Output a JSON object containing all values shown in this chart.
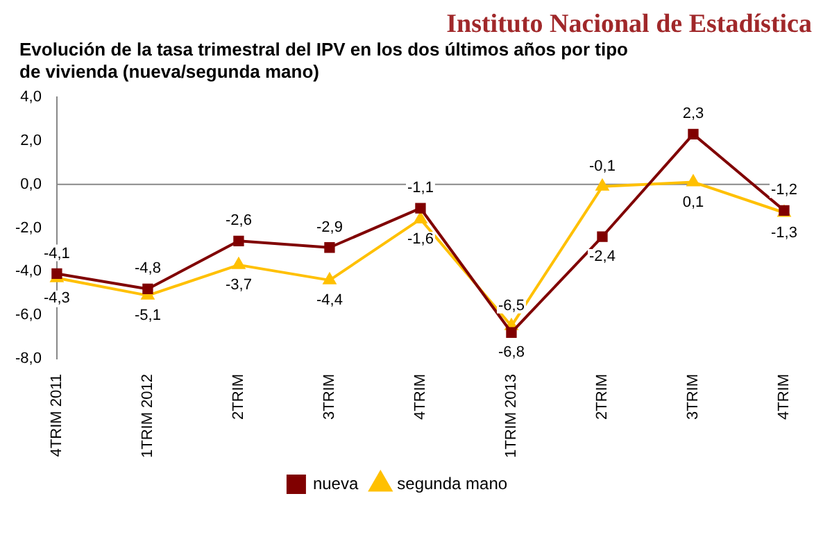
{
  "chart_data": {
    "type": "line",
    "title": "Evolución de la tasa trimestral del IPV en los dos últimos años por tipo de vivienda (nueva/segunda mano)",
    "annotations": [
      "Instituto Nacional de Estadística"
    ],
    "categories": [
      "4TRIM 2011",
      "1TRIM 2012",
      "2TRIM",
      "3TRIM",
      "4TRIM",
      "1TRIM 2013",
      "2TRIM",
      "3TRIM",
      "4TRIM"
    ],
    "series": [
      {
        "name": "nueva",
        "color": "#800000",
        "marker": "square",
        "values": [
          -4.1,
          -4.8,
          -2.6,
          -2.9,
          -1.1,
          -6.8,
          -2.4,
          2.3,
          -1.2
        ],
        "value_labels": [
          "-4,1",
          "-4,8",
          "-2,6",
          "-2,9",
          "-1,1",
          "-6,8",
          "-2,4",
          "2,3",
          "-1,2"
        ]
      },
      {
        "name": "segunda mano",
        "color": "#ffc000",
        "marker": "triangle",
        "values": [
          -4.3,
          -5.1,
          -3.7,
          -4.4,
          -1.6,
          -6.5,
          -0.1,
          0.1,
          -1.3
        ],
        "value_labels": [
          "-4,3",
          "-5,1",
          "-3,7",
          "-4,4",
          "-1,6",
          "-6,5",
          "-0,1",
          "0,1",
          "-1,3"
        ]
      }
    ],
    "ylim": [
      -8,
      4
    ],
    "yticks": [
      {
        "value": -8,
        "label": "-8,0"
      },
      {
        "value": -6,
        "label": "-6,0"
      },
      {
        "value": -4,
        "label": "-4,0"
      },
      {
        "value": -2,
        "label": "-2,0"
      },
      {
        "value": 0,
        "label": "0,0"
      },
      {
        "value": 2,
        "label": "2,0"
      },
      {
        "value": 4,
        "label": "4,0"
      }
    ],
    "grid": false,
    "ref_lines": [
      {
        "axis": "y",
        "value": 0,
        "color": "#888888"
      }
    ],
    "legend": "bottom",
    "line_style": "solid"
  }
}
